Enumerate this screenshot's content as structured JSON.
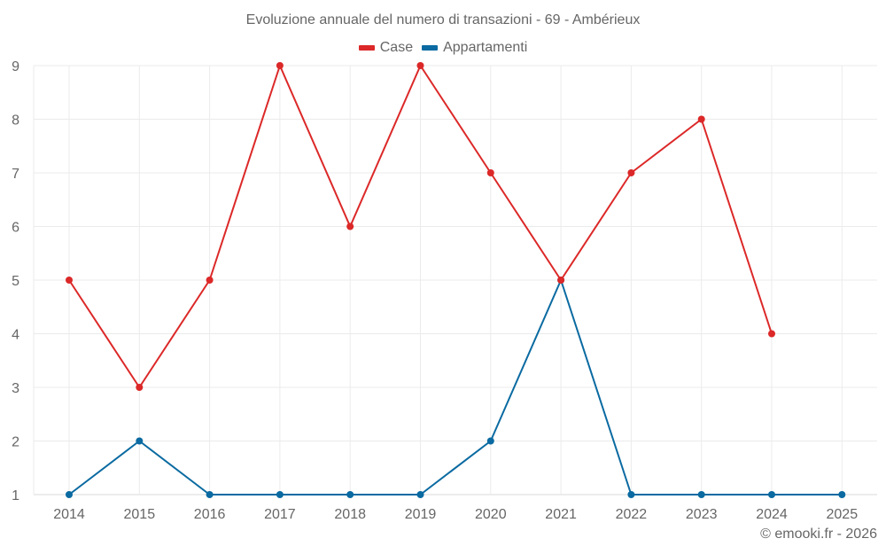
{
  "chart_data": {
    "type": "line",
    "title": "Evoluzione annuale del numero di transazioni - 69 - Ambérieux",
    "xlabel": "",
    "ylabel": "",
    "categories": [
      "2014",
      "2015",
      "2016",
      "2017",
      "2018",
      "2019",
      "2020",
      "2021",
      "2022",
      "2023",
      "2024",
      "2025"
    ],
    "series": [
      {
        "name": "Case",
        "color": "#dc2828",
        "values": [
          5,
          3,
          5,
          9,
          6,
          9,
          7,
          5,
          7,
          8,
          4,
          null
        ]
      },
      {
        "name": "Appartamenti",
        "color": "#0a6aa1",
        "values": [
          1,
          2,
          1,
          1,
          1,
          1,
          2,
          5,
          1,
          1,
          1,
          1
        ]
      }
    ],
    "yticks": [
      1,
      2,
      3,
      4,
      5,
      6,
      7,
      8,
      9
    ],
    "ylim": [
      1,
      9
    ],
    "grid": true,
    "legend_position": "top"
  },
  "credit": "© emooki.fr - 2026"
}
